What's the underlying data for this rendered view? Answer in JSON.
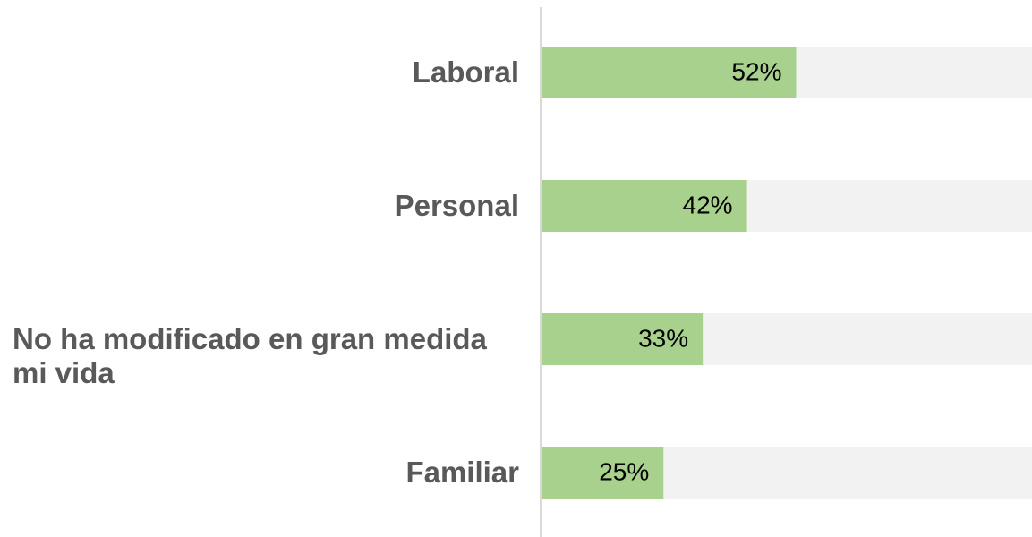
{
  "chart_data": {
    "type": "barh",
    "categories": [
      "Laboral",
      "Personal",
      "No ha modificado en gran medida mi vida",
      "Familiar"
    ],
    "values": [
      52,
      42,
      33,
      25
    ],
    "value_labels": [
      "52%",
      "42%",
      "33%",
      "25%"
    ],
    "color": "#a9d18e",
    "track_color": "#f2f2f2",
    "xlim": [
      0,
      100
    ]
  }
}
